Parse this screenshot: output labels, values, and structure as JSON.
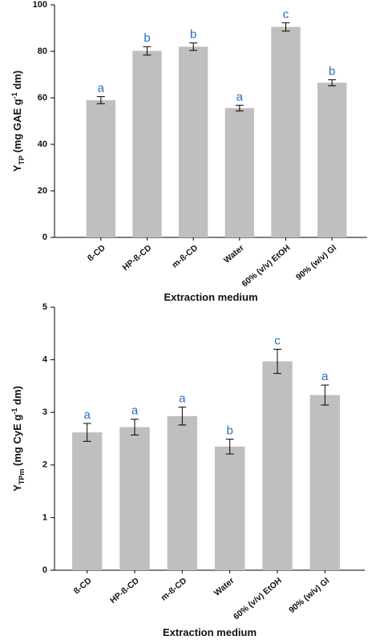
{
  "chart_data": [
    {
      "type": "bar",
      "ylabel": [
        "Y",
        "TP",
        " (mg GAE g",
        "-1",
        " dm)"
      ],
      "xlabel": "Extraction medium",
      "categories": [
        "ß-CD",
        "HP-ß-CD",
        "m-ß-CD",
        "Water",
        "60% (v/v) EtOH",
        "90% (w/v) Gl"
      ],
      "series": [
        {
          "color": "#bfbfbf",
          "values": [
            59,
            80.2,
            82,
            55.6,
            90.5,
            66.5
          ],
          "errors": [
            1.5,
            1.8,
            1.6,
            1.2,
            1.8,
            1.3
          ],
          "annotations": [
            "a",
            "b",
            "b",
            "a",
            "c",
            "b"
          ]
        }
      ],
      "ylim": [
        0,
        100
      ],
      "yticks": [
        0,
        20,
        40,
        60,
        80,
        100
      ]
    },
    {
      "type": "bar",
      "ylabel": [
        "Y",
        "TPm",
        " (mg CyE g",
        "-1",
        " dm)"
      ],
      "xlabel": "Extraction medium",
      "categories": [
        "ß-CD",
        "HP-ß-CD",
        "m-ß-CD",
        "Water",
        "60% (v/v) EtOH",
        "90% (w/v) Gl"
      ],
      "series": [
        {
          "color": "#bfbfbf",
          "values": [
            2.62,
            2.72,
            2.93,
            2.35,
            3.97,
            3.33
          ],
          "errors": [
            0.17,
            0.15,
            0.17,
            0.14,
            0.23,
            0.19
          ],
          "annotations": [
            "a",
            "a",
            "a",
            "b",
            "c",
            "a"
          ]
        }
      ],
      "ylim": [
        0,
        5
      ],
      "yticks": [
        0,
        1,
        2,
        3,
        4,
        5
      ]
    }
  ]
}
